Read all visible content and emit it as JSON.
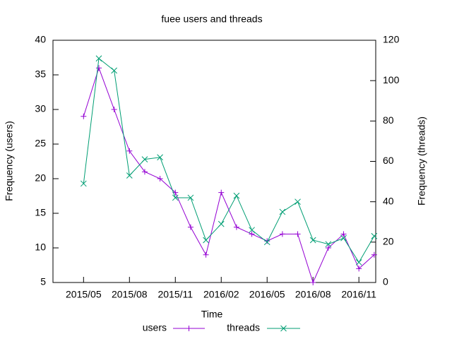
{
  "chart_data": {
    "type": "line",
    "title": "fuee users and threads",
    "xlabel": "Time",
    "ylabel": "Frequency (users)",
    "y2label": "Frequency (threads)",
    "x": [
      "2015/05",
      "2015/06",
      "2015/07",
      "2015/08",
      "2015/09",
      "2015/10",
      "2015/11",
      "2015/12",
      "2016/01",
      "2016/02",
      "2016/03",
      "2016/04",
      "2016/05",
      "2016/06",
      "2016/07",
      "2016/08",
      "2016/09",
      "2016/10",
      "2016/11",
      "2016/12"
    ],
    "series": [
      {
        "name": "users",
        "color": "#9400d3",
        "marker": "+",
        "values": [
          29,
          36,
          30,
          24,
          21,
          20,
          18,
          13,
          9,
          18,
          13,
          12,
          11,
          12,
          12,
          5,
          10,
          12,
          7,
          9
        ]
      },
      {
        "name": "threads",
        "color": "#009e73",
        "marker": "x",
        "axis": "y2",
        "values": [
          49,
          111,
          105,
          53,
          61,
          62,
          42,
          42,
          21,
          29,
          43,
          26,
          20,
          35,
          40,
          21,
          19,
          22,
          10,
          23
        ]
      }
    ],
    "xlim": [
      "2015/03",
      "2016/12"
    ],
    "xticks": [
      "2015/05",
      "2015/08",
      "2015/11",
      "2016/02",
      "2016/05",
      "2016/08",
      "2016/11"
    ],
    "ylim": [
      5,
      40
    ],
    "yticks": [
      5,
      10,
      15,
      20,
      25,
      30,
      35,
      40
    ],
    "y2lim": [
      0,
      120
    ],
    "y2ticks": [
      0,
      20,
      40,
      60,
      80,
      100,
      120
    ],
    "legend": "bottom"
  }
}
